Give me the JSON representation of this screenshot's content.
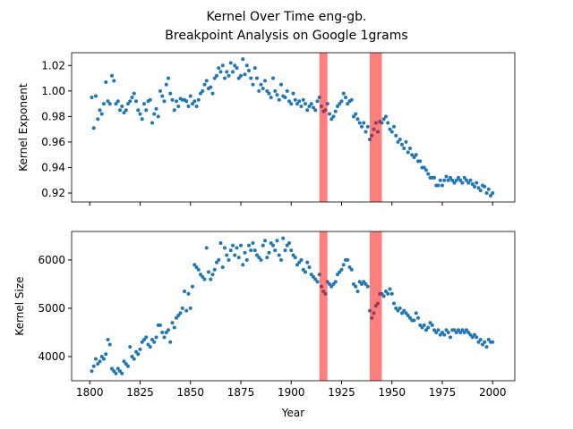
{
  "chart_data": [
    {
      "type": "scatter",
      "title": "Kernel Over Time eng-gb.",
      "subtitle": "Breakpoint Analysis on Google 1grams",
      "ylabel": "Kernel Exponent",
      "color": "#1f77b4",
      "xlim": [
        1791,
        2011
      ],
      "xticks": [
        1800,
        1825,
        1850,
        1875,
        1900,
        1925,
        1950,
        1975,
        2000
      ],
      "show_xtick_labels": false,
      "ylim": [
        0.913,
        1.03
      ],
      "yticks": [
        0.92,
        0.94,
        0.96,
        0.98,
        {
          "value": 1,
          "label": "1.00"
        },
        1.02
      ],
      "spans": [
        [
          1914,
          1918
        ],
        [
          1939,
          1945
        ]
      ],
      "span_color": "#ff0000",
      "x": [
        1801,
        1802,
        1803,
        1804,
        1805,
        1806,
        1807,
        1808,
        1809,
        1810,
        1811,
        1812,
        1813,
        1814,
        1815,
        1816,
        1817,
        1818,
        1819,
        1820,
        1821,
        1822,
        1823,
        1824,
        1825,
        1826,
        1827,
        1828,
        1829,
        1830,
        1831,
        1832,
        1833,
        1834,
        1835,
        1836,
        1837,
        1838,
        1839,
        1840,
        1841,
        1842,
        1843,
        1844,
        1845,
        1846,
        1847,
        1848,
        1849,
        1850,
        1851,
        1852,
        1853,
        1854,
        1855,
        1856,
        1857,
        1858,
        1859,
        1860,
        1861,
        1862,
        1863,
        1864,
        1865,
        1866,
        1867,
        1868,
        1869,
        1870,
        1871,
        1872,
        1873,
        1874,
        1875,
        1876,
        1877,
        1878,
        1879,
        1880,
        1881,
        1882,
        1883,
        1884,
        1885,
        1886,
        1887,
        1888,
        1889,
        1890,
        1891,
        1892,
        1893,
        1894,
        1895,
        1896,
        1897,
        1898,
        1899,
        1900,
        1901,
        1902,
        1903,
        1904,
        1905,
        1906,
        1907,
        1908,
        1909,
        1910,
        1911,
        1912,
        1913,
        1914,
        1915,
        1916,
        1917,
        1918,
        1919,
        1920,
        1921,
        1922,
        1923,
        1924,
        1925,
        1926,
        1927,
        1928,
        1929,
        1930,
        1931,
        1932,
        1933,
        1934,
        1935,
        1936,
        1937,
        1938,
        1939,
        1940,
        1941,
        1942,
        1943,
        1944,
        1945,
        1946,
        1947,
        1948,
        1949,
        1950,
        1951,
        1952,
        1953,
        1954,
        1955,
        1956,
        1957,
        1958,
        1959,
        1960,
        1961,
        1962,
        1963,
        1964,
        1965,
        1966,
        1967,
        1968,
        1969,
        1970,
        1971,
        1972,
        1973,
        1974,
        1975,
        1976,
        1977,
        1978,
        1979,
        1980,
        1981,
        1982,
        1983,
        1984,
        1985,
        1986,
        1987,
        1988,
        1989,
        1990,
        1991,
        1992,
        1993,
        1994,
        1995,
        1996,
        1997,
        1998,
        1999,
        2000
      ],
      "values": [
        0.995,
        0.971,
        0.996,
        0.978,
        0.985,
        0.982,
        0.99,
        1.007,
        0.992,
        0.99,
        1.012,
        1.008,
        0.99,
        0.992,
        0.985,
        0.988,
        0.983,
        0.985,
        0.99,
        0.992,
        0.995,
        0.998,
        0.992,
        0.985,
        0.982,
        0.978,
        0.99,
        0.985,
        0.992,
        0.993,
        0.975,
        0.982,
        0.986,
        0.98,
        1.0,
        0.996,
        0.992,
        1.005,
        1.01,
        0.998,
        0.993,
        0.985,
        0.992,
        0.988,
        0.994,
        0.993,
        0.993,
        0.992,
        0.988,
        0.996,
        0.99,
        0.992,
        0.988,
        0.993,
        0.998,
        1.0,
        1.005,
        1.008,
        1.002,
        1.003,
        0.998,
        1.01,
        1.012,
        1.018,
        1.015,
        1.02,
        1.01,
        1.015,
        1.012,
        1.022,
        1.015,
        1.02,
        1.018,
        1.01,
        1.012,
        1.025,
        1.013,
        1.02,
        1.016,
        1.01,
        1.005,
        1.018,
        1.01,
        1.0,
        1.005,
        1.002,
        1.008,
        1.0,
        0.998,
        0.995,
        1.01,
        1.0,
        0.997,
        0.993,
        1.005,
        0.996,
        0.995,
        1.0,
        0.992,
        0.99,
        0.998,
        0.993,
        0.99,
        0.992,
        0.988,
        0.993,
        0.99,
        0.985,
        0.988,
        0.99,
        0.987,
        0.985,
        0.992,
        0.995,
        0.988,
        0.984,
        0.985,
        0.99,
        0.982,
        0.978,
        0.98,
        0.984,
        0.988,
        0.99,
        0.992,
        0.998,
        0.995,
        0.99,
        0.992,
        0.993,
        0.98,
        0.982,
        0.978,
        0.975,
        0.972,
        0.975,
        0.968,
        0.972,
        0.962,
        0.965,
        0.97,
        0.975,
        0.968,
        0.976,
        0.975,
        0.978,
        0.98,
        0.975,
        0.97,
        0.968,
        0.972,
        0.965,
        0.96,
        0.962,
        0.958,
        0.955,
        0.96,
        0.952,
        0.955,
        0.95,
        0.948,
        0.95,
        0.945,
        0.945,
        0.94,
        0.94,
        0.938,
        0.935,
        0.932,
        0.932,
        0.932,
        0.926,
        0.926,
        0.93,
        0.926,
        0.93,
        0.933,
        0.93,
        0.932,
        0.93,
        0.928,
        0.93,
        0.932,
        0.93,
        0.928,
        0.932,
        0.93,
        0.928,
        0.93,
        0.927,
        0.925,
        0.928,
        0.924,
        0.922,
        0.926,
        0.925,
        0.92,
        0.923,
        0.918,
        0.92
      ]
    },
    {
      "type": "scatter",
      "ylabel": "Kernel Size",
      "xlabel": "Year",
      "color": "#1f77b4",
      "xlim": [
        1791,
        2011
      ],
      "xticks": [
        1800,
        1825,
        1850,
        1875,
        1900,
        1925,
        1950,
        1975,
        2000
      ],
      "show_xtick_labels": true,
      "ylim": [
        3500,
        6590
      ],
      "yticks": [
        4000,
        5000,
        6000
      ],
      "spans": [
        [
          1914,
          1918
        ],
        [
          1939,
          1945
        ]
      ],
      "span_color": "#ff0000",
      "x": [
        1801,
        1802,
        1803,
        1804,
        1805,
        1806,
        1807,
        1808,
        1809,
        1810,
        1811,
        1812,
        1813,
        1814,
        1815,
        1816,
        1817,
        1818,
        1819,
        1820,
        1821,
        1822,
        1823,
        1824,
        1825,
        1826,
        1827,
        1828,
        1829,
        1830,
        1831,
        1832,
        1833,
        1834,
        1835,
        1836,
        1837,
        1838,
        1839,
        1840,
        1841,
        1842,
        1843,
        1844,
        1845,
        1846,
        1847,
        1848,
        1849,
        1850,
        1851,
        1852,
        1853,
        1854,
        1855,
        1856,
        1857,
        1858,
        1859,
        1860,
        1861,
        1862,
        1863,
        1864,
        1865,
        1866,
        1867,
        1868,
        1869,
        1870,
        1871,
        1872,
        1873,
        1874,
        1875,
        1876,
        1877,
        1878,
        1879,
        1880,
        1881,
        1882,
        1883,
        1884,
        1885,
        1886,
        1887,
        1888,
        1889,
        1890,
        1891,
        1892,
        1893,
        1894,
        1895,
        1896,
        1897,
        1898,
        1899,
        1900,
        1901,
        1902,
        1903,
        1904,
        1905,
        1906,
        1907,
        1908,
        1909,
        1910,
        1911,
        1912,
        1913,
        1914,
        1915,
        1916,
        1917,
        1918,
        1919,
        1920,
        1921,
        1922,
        1923,
        1924,
        1925,
        1926,
        1927,
        1928,
        1929,
        1930,
        1931,
        1932,
        1933,
        1934,
        1935,
        1936,
        1937,
        1938,
        1939,
        1940,
        1941,
        1942,
        1943,
        1944,
        1945,
        1946,
        1947,
        1948,
        1949,
        1950,
        1951,
        1952,
        1953,
        1954,
        1955,
        1956,
        1957,
        1958,
        1959,
        1960,
        1961,
        1962,
        1963,
        1964,
        1965,
        1966,
        1967,
        1968,
        1969,
        1970,
        1971,
        1972,
        1973,
        1974,
        1975,
        1976,
        1977,
        1978,
        1979,
        1980,
        1981,
        1982,
        1983,
        1984,
        1985,
        1986,
        1987,
        1988,
        1989,
        1990,
        1991,
        1992,
        1993,
        1994,
        1995,
        1996,
        1997,
        1998,
        1999,
        2000
      ],
      "values": [
        3700,
        3800,
        3950,
        3850,
        3900,
        4000,
        3950,
        4050,
        4350,
        4250,
        3750,
        3700,
        3650,
        3750,
        3700,
        3650,
        3900,
        3850,
        3800,
        4200,
        4000,
        3950,
        4100,
        4050,
        4150,
        4300,
        4350,
        4400,
        4250,
        4200,
        4350,
        4300,
        4400,
        4650,
        4650,
        4500,
        4400,
        4500,
        4550,
        4300,
        4700,
        4600,
        4800,
        4850,
        4900,
        5000,
        5350,
        4950,
        5300,
        5000,
        5450,
        5900,
        5850,
        5800,
        5700,
        5650,
        5600,
        6250,
        5750,
        5600,
        5700,
        5800,
        5950,
        6000,
        6350,
        5850,
        6250,
        6100,
        6000,
        6200,
        6300,
        6100,
        6250,
        6050,
        6300,
        5900,
        6150,
        6000,
        6300,
        6200,
        6350,
        6200,
        6100,
        6050,
        6000,
        6300,
        6400,
        6050,
        6150,
        6350,
        6300,
        6200,
        6400,
        6100,
        6000,
        6450,
        6200,
        6300,
        6350,
        6200,
        6100,
        6050,
        5900,
        5950,
        6000,
        5800,
        5750,
        5950,
        5850,
        5700,
        5650,
        5600,
        5550,
        5700,
        5450,
        5350,
        5300,
        5550,
        5500,
        5450,
        5500,
        5550,
        5700,
        5750,
        5800,
        5900,
        6000,
        6000,
        5850,
        5800,
        5500,
        5450,
        5350,
        5550,
        5500,
        5550,
        5500,
        5450,
        4950,
        4800,
        4900,
        5050,
        5100,
        5300,
        5300,
        5250,
        5350,
        5300,
        5400,
        5300,
        5100,
        5000,
        4950,
        5000,
        4900,
        4950,
        4900,
        4850,
        4800,
        4750,
        4750,
        4900,
        4800,
        4650,
        4600,
        4650,
        4550,
        4600,
        4700,
        4650,
        4550,
        4500,
        4550,
        4450,
        4500,
        4450,
        4550,
        4500,
        4400,
        4550,
        4550,
        4500,
        4550,
        4500,
        4550,
        4500,
        4550,
        4500,
        4450,
        4400,
        4450,
        4400,
        4300,
        4350,
        4250,
        4300,
        4200,
        4350,
        4300,
        4300
      ]
    }
  ]
}
